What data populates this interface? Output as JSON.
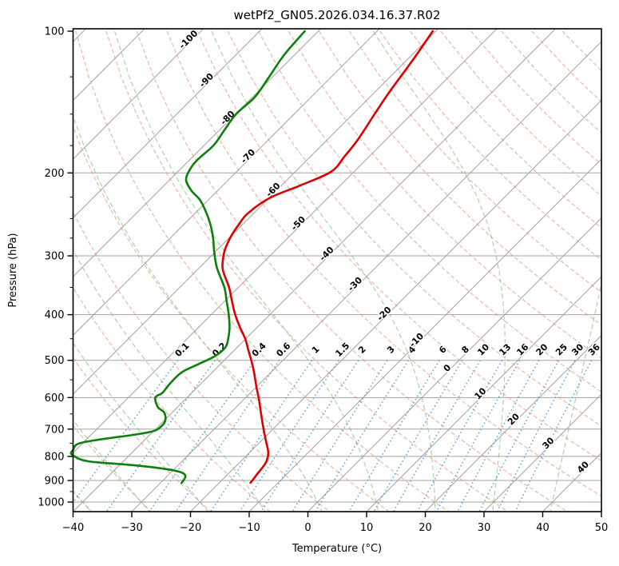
{
  "title": "wetPf2_GN05.2026.034.16.37.R02",
  "axes": {
    "x": {
      "label": "Temperature (°C)",
      "tick_values": [
        -40,
        -30,
        -20,
        -10,
        0,
        10,
        20,
        30,
        40,
        50
      ],
      "tick_labels": [
        "−40",
        "−30",
        "−20",
        "−10",
        "0",
        "10",
        "20",
        "30",
        "40",
        "50"
      ],
      "range": [
        -40,
        50
      ]
    },
    "y": {
      "label": "Pressure (hPa)",
      "tick_values": [
        100,
        200,
        300,
        400,
        500,
        600,
        700,
        800,
        900,
        1000
      ],
      "tick_labels": [
        "100",
        "200",
        "300",
        "400",
        "500",
        "600",
        "700",
        "800",
        "900",
        "1000"
      ],
      "minor_ticks": [
        125,
        150,
        175,
        225,
        250,
        275,
        350,
        450,
        550,
        650,
        750,
        850,
        950
      ],
      "range": [
        100,
        1050
      ],
      "scale": "log"
    }
  },
  "colors": {
    "temperature_trace": "#dc0000",
    "dewpoint_trace": "#0c800c",
    "isotherm_line": "#a3a3a3",
    "isobar_line": "#a3a3a3",
    "dry_adiabat": "rgba(240,140,110,0.65)",
    "moist_adiabat": "rgba(110,185,110,0.60)",
    "mixing_line": "#4f9bdc",
    "mixing_label": "#2470c8",
    "isotherm_label_neg": "#2e74b5",
    "isotherm_label_zero": "#808080",
    "isotherm_label_pos": "#c23232",
    "frame": "#000000"
  },
  "isotherm_labels": [
    {
      "value": -100,
      "text": "-100"
    },
    {
      "value": -90,
      "text": "-90"
    },
    {
      "value": -80,
      "text": "-80"
    },
    {
      "value": -70,
      "text": "-70"
    },
    {
      "value": -60,
      "text": "-60"
    },
    {
      "value": -50,
      "text": "-50"
    },
    {
      "value": -40,
      "text": "-40"
    },
    {
      "value": -30,
      "text": "-30"
    },
    {
      "value": -20,
      "text": "-20"
    },
    {
      "value": -10,
      "text": "-10"
    },
    {
      "value": 0,
      "text": "0"
    },
    {
      "value": 10,
      "text": "10"
    },
    {
      "value": 20,
      "text": "20"
    },
    {
      "value": 30,
      "text": "30"
    },
    {
      "value": 40,
      "text": "40"
    }
  ],
  "mixing_ratio_labels": [
    "0.1",
    "0.2",
    "0.4",
    "0.6",
    "1",
    "1.5",
    "2",
    "3",
    "4",
    "6",
    "8",
    "10",
    "13",
    "16",
    "20",
    "25",
    "30",
    "36"
  ],
  "chart_data": {
    "type": "line",
    "subtype": "skew_t_log_p",
    "title": "wetPf2_GN05.2026.034.16.37.R02",
    "xlabel": "Temperature (°C)",
    "ylabel": "Pressure (hPa)",
    "x_range_c": [
      -40,
      50
    ],
    "p_range_hpa": [
      100,
      1050
    ],
    "skew": "45deg_isotherms",
    "grid": true,
    "legend": "none",
    "series": [
      {
        "name": "temperature",
        "units": {
          "p": "hPa",
          "t": "degC"
        },
        "points": [
          [
            100,
            -60.5
          ],
          [
            115,
            -59.0
          ],
          [
            135,
            -57.5
          ],
          [
            150,
            -56.3
          ],
          [
            170,
            -54.8
          ],
          [
            185,
            -54.2
          ],
          [
            199,
            -53.9
          ],
          [
            213,
            -56.9
          ],
          [
            226,
            -59.9
          ],
          [
            244,
            -61.0
          ],
          [
            258,
            -60.6
          ],
          [
            270,
            -60.1
          ],
          [
            283,
            -59.3
          ],
          [
            297,
            -58.2
          ],
          [
            320,
            -55.8
          ],
          [
            350,
            -51.6
          ],
          [
            375,
            -48.7
          ],
          [
            400,
            -45.9
          ],
          [
            425,
            -43.0
          ],
          [
            450,
            -40.1
          ],
          [
            475,
            -37.7
          ],
          [
            500,
            -35.4
          ],
          [
            525,
            -33.3
          ],
          [
            550,
            -31.4
          ],
          [
            575,
            -29.6
          ],
          [
            600,
            -27.8
          ],
          [
            650,
            -24.6
          ],
          [
            700,
            -21.6
          ],
          [
            750,
            -18.7
          ],
          [
            775,
            -17.3
          ],
          [
            800,
            -16.2
          ],
          [
            825,
            -15.5
          ],
          [
            850,
            -15.2
          ],
          [
            875,
            -15.0
          ],
          [
            895,
            -14.8
          ],
          [
            910,
            -14.7
          ]
        ]
      },
      {
        "name": "dewpoint",
        "units": {
          "p": "hPa",
          "t": "degC"
        },
        "points": [
          [
            100,
            -82.3
          ],
          [
            112,
            -81.8
          ],
          [
            125,
            -80.6
          ],
          [
            138,
            -79.6
          ],
          [
            150,
            -79.9
          ],
          [
            163,
            -79.1
          ],
          [
            175,
            -78.4
          ],
          [
            188,
            -78.7
          ],
          [
            197,
            -78.3
          ],
          [
            207,
            -77.2
          ],
          [
            218,
            -74.5
          ],
          [
            228,
            -71.5
          ],
          [
            239,
            -69.0
          ],
          [
            250,
            -66.8
          ],
          [
            262,
            -64.7
          ],
          [
            278,
            -62.3
          ],
          [
            294,
            -60.2
          ],
          [
            318,
            -57.0
          ],
          [
            350,
            -52.4
          ],
          [
            375,
            -49.6
          ],
          [
            400,
            -47.0
          ],
          [
            427,
            -44.6
          ],
          [
            450,
            -43.0
          ],
          [
            470,
            -42.0
          ],
          [
            490,
            -42.3
          ],
          [
            510,
            -43.8
          ],
          [
            530,
            -45.2
          ],
          [
            560,
            -45.3
          ],
          [
            586,
            -45.0
          ],
          [
            600,
            -45.4
          ],
          [
            629,
            -43.3
          ],
          [
            646,
            -41.3
          ],
          [
            674,
            -39.7
          ],
          [
            700,
            -39.6
          ],
          [
            710,
            -40.5
          ],
          [
            720,
            -42.8
          ],
          [
            738,
            -48.1
          ],
          [
            752,
            -50.7
          ],
          [
            775,
            -50.5
          ],
          [
            793,
            -49.9
          ],
          [
            819,
            -46.1
          ],
          [
            833,
            -38.6
          ],
          [
            848,
            -32.4
          ],
          [
            863,
            -28.6
          ],
          [
            881,
            -26.9
          ],
          [
            911,
            -26.4
          ]
        ]
      }
    ],
    "background": {
      "isotherms_c": {
        "start": -120,
        "end": 50,
        "step": 10
      },
      "dry_adiabats_c": {
        "start": -40,
        "end": 180,
        "step": 10
      },
      "moist_adiabats_c": {
        "start": -40,
        "end": 70,
        "step": 10
      },
      "mixing_ratio_g_kg": [
        0.1,
        0.2,
        0.4,
        0.6,
        1,
        1.5,
        2,
        3,
        4,
        6,
        8,
        10,
        13,
        16,
        20,
        25,
        30,
        36
      ]
    }
  }
}
